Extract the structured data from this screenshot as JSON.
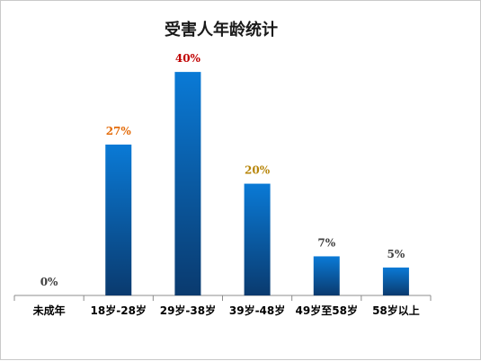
{
  "chart_data": {
    "type": "bar",
    "title": "受害人年龄统计",
    "categories": [
      "未成年",
      "18岁-28岁",
      "29岁-38岁",
      "39岁-48岁",
      "49岁至58岁",
      "58岁以上"
    ],
    "values": [
      0,
      27,
      40,
      20,
      7,
      5
    ],
    "value_labels": [
      "0%",
      "27%",
      "40%",
      "20%",
      "7%",
      "5%"
    ],
    "label_colors": [
      "#404040",
      "#e46c0a",
      "#c00000",
      "#b8860b",
      "#404040",
      "#404040"
    ],
    "unit": "%",
    "ylim": [
      0,
      45
    ],
    "grid": false,
    "legend": "none",
    "bar_color_top": "#0a7ad6",
    "bar_color_bottom": "#0a3a6e"
  }
}
